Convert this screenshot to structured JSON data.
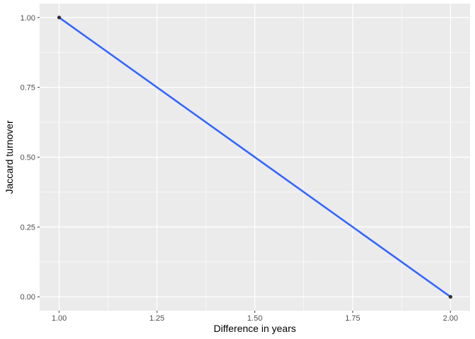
{
  "chart_data": {
    "type": "line",
    "title": "",
    "xlabel": "Difference in years",
    "ylabel": "Jaccard turnover",
    "xlim": [
      0.95,
      2.05
    ],
    "ylim": [
      -0.05,
      1.05
    ],
    "x_ticks": [
      1.0,
      1.25,
      1.5,
      1.75,
      2.0
    ],
    "x_tick_labels": [
      "1.00",
      "1.25",
      "1.50",
      "1.75",
      "2.00"
    ],
    "y_ticks": [
      0.0,
      0.25,
      0.5,
      0.75,
      1.0
    ],
    "y_tick_labels": [
      "0.00",
      "0.25",
      "0.50",
      "0.75",
      "1.00"
    ],
    "grid": true,
    "legend": "none",
    "points": [
      {
        "x": 1.0,
        "y": 1.0
      },
      {
        "x": 2.0,
        "y": 0.0
      }
    ],
    "fit_line": [
      {
        "x": 1.0,
        "y": 1.0
      },
      {
        "x": 2.0,
        "y": 0.0
      }
    ],
    "colors": {
      "panel": "#ebebeb",
      "grid": "#ffffff",
      "line": "#3366ff",
      "point": "#333333",
      "tick": "#333333"
    }
  }
}
